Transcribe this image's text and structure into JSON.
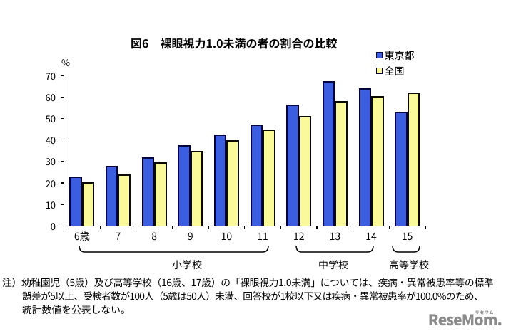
{
  "figure": {
    "title": "図6　裸眼視力1.0未満の者の割合の比較",
    "y_unit": "%",
    "note_lines": [
      "注）幼稚園児（5歳）及び高等学校（16歳、17歳）の「裸眼視力1.0未満」については、疾病・異常被患率等の標準",
      "誤差が5以上、受検者数が100人（5歳は50人）未満、回答校が1校以下又は疾病・異常被患率が100.0%のため、",
      "統計数値を公表しない。"
    ],
    "logo": {
      "word": "ReseMom.",
      "kana": "リセマム"
    }
  },
  "chart_data": {
    "type": "bar",
    "title": "図6　裸眼視力1.0未満の者の割合の比較",
    "categories": [
      "6歳",
      "7",
      "8",
      "9",
      "10",
      "11",
      "12",
      "13",
      "14",
      "15"
    ],
    "series": [
      {
        "name": "東京都",
        "color": "#3b5de0",
        "border": "#00003c",
        "values": [
          23,
          28,
          32,
          37.5,
          42.5,
          47,
          56.5,
          67.5,
          64,
          53
        ]
      },
      {
        "name": "全国",
        "color": "#fafa9b",
        "border": "#0a0a00",
        "values": [
          20.5,
          24,
          29.5,
          35,
          40,
          45,
          51,
          58,
          60.5,
          62
        ]
      }
    ],
    "ylabel": "%",
    "ylim": [
      0,
      70
    ],
    "ytick_step": 10,
    "grid": false,
    "legend_position": "top-right",
    "groups": [
      {
        "id": "elementary",
        "label": "小学校",
        "from": "6歳",
        "to": "11"
      },
      {
        "id": "junior-high",
        "label": "中学校",
        "from": "12",
        "to": "14"
      },
      {
        "id": "high-school",
        "label": "高等学校",
        "from": "15",
        "to": "15"
      }
    ]
  }
}
